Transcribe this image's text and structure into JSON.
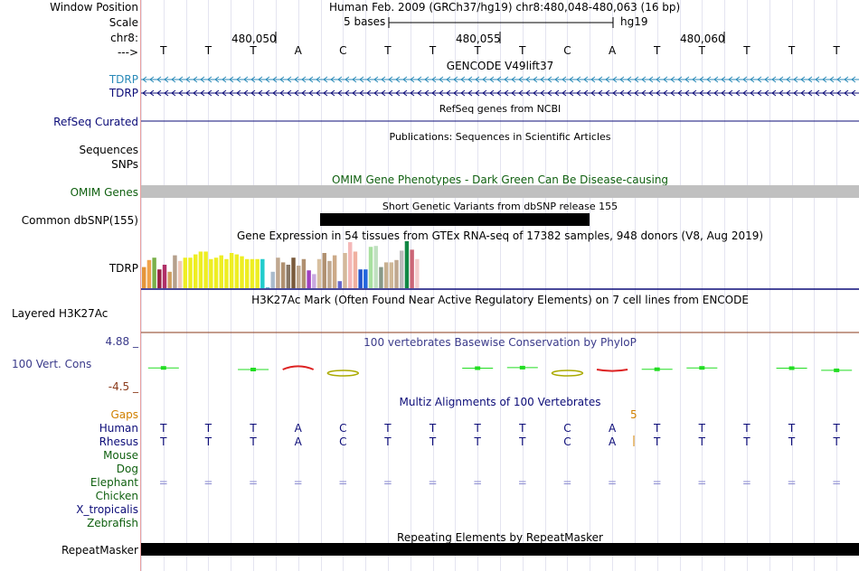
{
  "header": {
    "window_position_label": "Window Position",
    "assembly_text": "Human Feb. 2009 (GRCh37/hg19)   chr8:480,048-480,063 (16 bp)",
    "scale_label": "Scale",
    "scale_text": "5 bases",
    "scale_db": "hg19",
    "chrom_label": "chr8:",
    "coords": [
      "480,050",
      "480,055",
      "480,060"
    ],
    "strand_label": "--->"
  },
  "bases": [
    "T",
    "T",
    "T",
    "A",
    "C",
    "T",
    "T",
    "T",
    "T",
    "C",
    "A",
    "T",
    "T",
    "T",
    "T",
    "T"
  ],
  "tracks": {
    "gencode": {
      "title": "GENCODE V49lift37",
      "rows": [
        "TDRP",
        "TDRP"
      ]
    },
    "refseq": {
      "title": "RefSeq genes from NCBI",
      "label": "RefSeq Curated"
    },
    "publications": {
      "title": "Publications: Sequences in Scientific Articles",
      "labels": [
        "Sequences",
        "SNPs"
      ]
    },
    "omim": {
      "title": "OMIM Gene Phenotypes - Dark Green Can Be Disease-causing",
      "label": "OMIM Genes"
    },
    "dbsnp": {
      "title": "Short Genetic Variants from dbSNP release 155",
      "label": "Common dbSNP(155)"
    },
    "gtex": {
      "title": "Gene Expression in 54 tissues from GTEx RNA-seq of 17382 samples, 948 donors (V8, Aug 2019)",
      "label": "TDRP"
    },
    "h3k27ac": {
      "title": "H3K27Ac Mark (Often Found Near Active Regulatory Elements) on 7 cell lines from ENCODE",
      "label": "Layered H3K27Ac"
    },
    "phylop": {
      "title": "100 vertebrates Basewise Conservation by PhyloP",
      "label": "100 Vert. Cons",
      "max": "4.88 _",
      "min": "-4.5 _"
    },
    "multiz": {
      "title": "Multiz Alignments of 100 Vertebrates",
      "gaps_label": "Gaps",
      "gap_count": "5",
      "species": [
        "Human",
        "Rhesus",
        "Mouse",
        "Dog",
        "Elephant",
        "Chicken",
        "X_tropicalis",
        "Zebrafish"
      ],
      "human_bases": [
        "T",
        "T",
        "T",
        "A",
        "C",
        "T",
        "T",
        "T",
        "T",
        "C",
        "A",
        "T",
        "T",
        "T",
        "T",
        "T"
      ],
      "rhesus_bases": [
        "T",
        "T",
        "T",
        "A",
        "C",
        "T",
        "T",
        "T",
        "T",
        "C",
        "A",
        "T",
        "T",
        "T",
        "T",
        "T"
      ],
      "elephant_symbol": "="
    },
    "repeatmasker": {
      "title": "Repeating Elements by RepeatMasker",
      "label": "RepeatMasker"
    }
  },
  "gtex_bars": [
    {
      "v": 0.45,
      "c": "#e5953a"
    },
    {
      "v": 0.6,
      "c": "#f0a24a"
    },
    {
      "v": 0.65,
      "c": "#7ab04a"
    },
    {
      "v": 0.4,
      "c": "#992244"
    },
    {
      "v": 0.5,
      "c": "#b03068"
    },
    {
      "v": 0.35,
      "c": "#d0a060"
    },
    {
      "v": 0.7,
      "c": "#b5a08c"
    },
    {
      "v": 0.58,
      "c": "#f0c8b8"
    },
    {
      "v": 0.65,
      "c": "#eeee22"
    },
    {
      "v": 0.65,
      "c": "#eeee22"
    },
    {
      "v": 0.72,
      "c": "#eeee22"
    },
    {
      "v": 0.78,
      "c": "#eeee22"
    },
    {
      "v": 0.78,
      "c": "#eeee22"
    },
    {
      "v": 0.62,
      "c": "#eeee22"
    },
    {
      "v": 0.65,
      "c": "#eeee22"
    },
    {
      "v": 0.7,
      "c": "#eeee22"
    },
    {
      "v": 0.62,
      "c": "#eeee22"
    },
    {
      "v": 0.75,
      "c": "#eeee22"
    },
    {
      "v": 0.72,
      "c": "#eeee22"
    },
    {
      "v": 0.68,
      "c": "#eeee22"
    },
    {
      "v": 0.62,
      "c": "#eeee22"
    },
    {
      "v": 0.62,
      "c": "#eeee22"
    },
    {
      "v": 0.62,
      "c": "#eeee22"
    },
    {
      "v": 0.62,
      "c": "#22cccc"
    },
    {
      "v": 0.02,
      "c": "#5ab0d0"
    },
    {
      "v": 0.35,
      "c": "#aabbcc"
    },
    {
      "v": 0.65,
      "c": "#c0a890"
    },
    {
      "v": 0.55,
      "c": "#b09070"
    },
    {
      "v": 0.5,
      "c": "#887766"
    },
    {
      "v": 0.65,
      "c": "#7a5a3c"
    },
    {
      "v": 0.48,
      "c": "#c0a890"
    },
    {
      "v": 0.62,
      "c": "#b09070"
    },
    {
      "v": 0.38,
      "c": "#a040c0"
    },
    {
      "v": 0.3,
      "c": "#c8a8e0"
    },
    {
      "v": 0.62,
      "c": "#d8c0a0"
    },
    {
      "v": 0.75,
      "c": "#b09070"
    },
    {
      "v": 0.58,
      "c": "#c0a890"
    },
    {
      "v": 0.7,
      "c": "#ccaa88"
    },
    {
      "v": 0.15,
      "c": "#6666cc"
    },
    {
      "v": 0.75,
      "c": "#d4b89a"
    },
    {
      "v": 0.98,
      "c": "#f4b8b8"
    },
    {
      "v": 0.78,
      "c": "#f0b0a0"
    },
    {
      "v": 0.4,
      "c": "#2255cc"
    },
    {
      "v": 0.4,
      "c": "#2266dd"
    },
    {
      "v": 0.88,
      "c": "#a8e0a0"
    },
    {
      "v": 0.9,
      "c": "#c0e0c0"
    },
    {
      "v": 0.45,
      "c": "#889988"
    },
    {
      "v": 0.55,
      "c": "#c8b090"
    },
    {
      "v": 0.55,
      "c": "#d0b898"
    },
    {
      "v": 0.6,
      "c": "#c0a890"
    },
    {
      "v": 0.8,
      "c": "#bbbbbb"
    },
    {
      "v": 1.0,
      "c": "#118844"
    },
    {
      "v": 0.82,
      "c": "#cc6677"
    },
    {
      "v": 0.62,
      "c": "#f4cccc"
    }
  ],
  "phylop_scores": [
    {
      "pos": 1,
      "v": 0.6,
      "c": "#22dd22"
    },
    {
      "pos": 3,
      "v": 0.0,
      "c": "#22dd22"
    },
    {
      "pos": 4,
      "v": 0.9,
      "c": "#dd2222"
    },
    {
      "pos": 5,
      "v": -0.6,
      "c": "#aaaa00"
    },
    {
      "pos": 8,
      "v": 0.5,
      "c": "#22dd22"
    },
    {
      "pos": 9,
      "v": 0.7,
      "c": "#22dd22"
    },
    {
      "pos": 10,
      "v": -0.2,
      "c": "#aaaa00"
    },
    {
      "pos": 11,
      "v": -0.4,
      "c": "#dd2222"
    },
    {
      "pos": 12,
      "v": 0.1,
      "c": "#22dd22"
    },
    {
      "pos": 13,
      "v": 0.6,
      "c": "#22dd22"
    },
    {
      "pos": 15,
      "v": 0.5,
      "c": "#22dd22"
    },
    {
      "pos": 16,
      "v": -0.3,
      "c": "#22dd22"
    }
  ],
  "colors": {
    "gencode": "#2a8ab8",
    "gencode_dark": "#0c0c78",
    "refseq": "#0c0c78",
    "omim": "#106010",
    "omim_bar": "#c0c0c0",
    "phylop": "#3a3a8a",
    "phylop_min": "#8a3a1a",
    "multiz": "#0c0c78",
    "gaps": "#d08000",
    "elephant": "#106010",
    "h3k27ac_line": "#8a3a1a"
  }
}
